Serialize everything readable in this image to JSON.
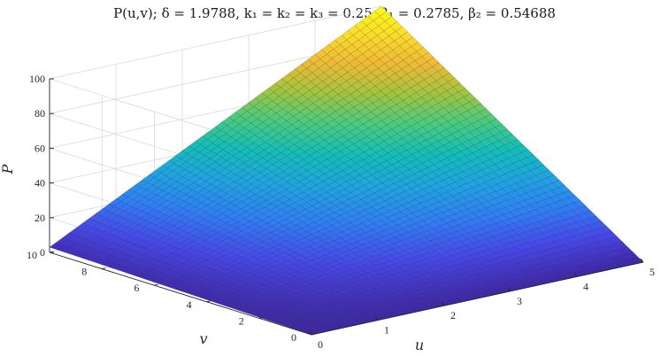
{
  "chart_data": {
    "type": "surface",
    "title": "P(u,v); δ = 1.9788, k₁ = k₂ = k₃ = 0.25, β₁ = 0.2785, β₂ = 0.54688",
    "xlabel": "u",
    "ylabel": "v",
    "zlabel": "P",
    "xlim": [
      0,
      5
    ],
    "ylim": [
      0,
      10
    ],
    "zlim": [
      0,
      100
    ],
    "x_ticks": [
      "0",
      "1",
      "2",
      "3",
      "4",
      "5"
    ],
    "y_ticks": [
      "0",
      "2",
      "4",
      "6",
      "8",
      "10"
    ],
    "z_ticks": [
      "0",
      "20",
      "40",
      "60",
      "80",
      "100"
    ],
    "grid": true,
    "colormap": "parula",
    "colormap_stops": [
      "#3e26a8",
      "#4746eb",
      "#2f7ef7",
      "#1fa4e3",
      "#12beb9",
      "#4bcb7e",
      "#a5c43d",
      "#f0ba35",
      "#fadd2a",
      "#f9fb15"
    ],
    "mesh_resolution": 50,
    "corner_values": [
      {
        "u": 0,
        "v": 0,
        "P": 0
      },
      {
        "u": 5,
        "v": 0,
        "P": 0
      },
      {
        "u": 0,
        "v": 10,
        "P": 3
      },
      {
        "u": 5,
        "v": 10,
        "P": 100
      }
    ]
  }
}
